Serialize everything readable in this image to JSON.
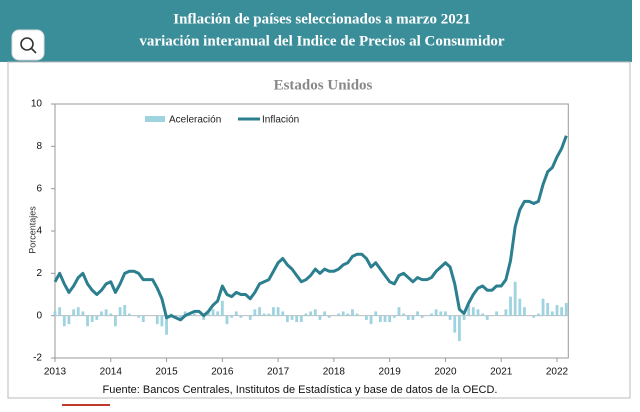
{
  "header": {
    "title_line1": "Inflación de países seleccionados a marzo 2021",
    "title_line2": "variación interanual del Indice de Precios al Consumidor"
  },
  "chart_data": {
    "type": "bar-line",
    "title": "Estados Unidos",
    "y_label": "Porcentajes",
    "source": "Fuente: Bancos Centrales, Institutos de Estadística y base de datos de la OECD.",
    "categories": [
      "2013",
      null,
      null,
      null,
      null,
      null,
      null,
      null,
      null,
      null,
      null,
      null,
      "2014",
      null,
      null,
      null,
      null,
      null,
      null,
      null,
      null,
      null,
      null,
      null,
      "2015",
      null,
      null,
      null,
      null,
      null,
      null,
      null,
      null,
      null,
      null,
      null,
      "2016",
      null,
      null,
      null,
      null,
      null,
      null,
      null,
      null,
      null,
      null,
      null,
      "2017",
      null,
      null,
      null,
      null,
      null,
      null,
      null,
      null,
      null,
      null,
      null,
      "2018",
      null,
      null,
      null,
      null,
      null,
      null,
      null,
      null,
      null,
      null,
      null,
      "2019",
      null,
      null,
      null,
      null,
      null,
      null,
      null,
      null,
      null,
      null,
      null,
      "2020",
      null,
      null,
      null,
      null,
      null,
      null,
      null,
      null,
      null,
      null,
      null,
      "2021",
      null,
      null,
      null,
      null,
      null,
      null,
      null,
      null,
      null,
      null,
      null,
      "2022",
      null,
      null
    ],
    "series": [
      {
        "name": "Aceleración",
        "kind": "bar",
        "color": "#9fd3e0",
        "values": [
          0.2,
          0.4,
          -0.5,
          -0.4,
          0.3,
          0.4,
          0.2,
          -0.5,
          -0.3,
          -0.2,
          0.2,
          0.3,
          0.1,
          -0.5,
          0.4,
          0.5,
          0.1,
          0.0,
          -0.1,
          -0.3,
          0.0,
          0.0,
          -0.4,
          -0.5,
          -0.9,
          0.1,
          -0.1,
          -0.1,
          0.2,
          0.1,
          0.1,
          0.0,
          -0.2,
          0.2,
          0.3,
          0.2,
          0.7,
          -0.4,
          -0.1,
          0.2,
          -0.1,
          0.0,
          -0.2,
          0.3,
          0.4,
          0.1,
          0.1,
          0.4,
          0.4,
          0.2,
          -0.3,
          -0.2,
          -0.3,
          -0.3,
          0.1,
          0.2,
          0.3,
          -0.2,
          0.2,
          -0.1,
          0.0,
          0.1,
          0.2,
          0.1,
          0.3,
          0.1,
          0.0,
          -0.2,
          -0.4,
          0.2,
          -0.3,
          -0.3,
          -0.3,
          -0.1,
          0.4,
          0.1,
          -0.2,
          -0.2,
          0.2,
          -0.1,
          0.0,
          0.1,
          0.3,
          0.2,
          0.2,
          -0.2,
          -0.8,
          -1.2,
          -0.2,
          0.5,
          0.4,
          0.3,
          0.1,
          -0.2,
          0.0,
          0.2,
          0.0,
          0.3,
          0.9,
          1.6,
          0.8,
          0.4,
          0.0,
          -0.1,
          0.1,
          0.8,
          0.6,
          0.2,
          0.5,
          0.4,
          0.6
        ]
      },
      {
        "name": "Inflación",
        "kind": "line",
        "color": "#2b7f8e",
        "values": [
          1.6,
          2.0,
          1.5,
          1.1,
          1.4,
          1.8,
          2.0,
          1.5,
          1.2,
          1.0,
          1.2,
          1.5,
          1.6,
          1.1,
          1.5,
          2.0,
          2.1,
          2.1,
          2.0,
          1.7,
          1.7,
          1.7,
          1.3,
          0.8,
          -0.1,
          0.0,
          -0.1,
          -0.2,
          0.0,
          0.1,
          0.2,
          0.2,
          0.0,
          0.2,
          0.5,
          0.7,
          1.4,
          1.0,
          0.9,
          1.1,
          1.0,
          1.0,
          0.8,
          1.1,
          1.5,
          1.6,
          1.7,
          2.1,
          2.5,
          2.7,
          2.4,
          2.2,
          1.9,
          1.6,
          1.7,
          1.9,
          2.2,
          2.0,
          2.2,
          2.1,
          2.1,
          2.2,
          2.4,
          2.5,
          2.8,
          2.9,
          2.9,
          2.7,
          2.3,
          2.5,
          2.2,
          1.9,
          1.6,
          1.5,
          1.9,
          2.0,
          1.8,
          1.6,
          1.8,
          1.7,
          1.7,
          1.8,
          2.1,
          2.3,
          2.5,
          2.3,
          1.5,
          0.3,
          0.1,
          0.6,
          1.0,
          1.3,
          1.4,
          1.2,
          1.2,
          1.4,
          1.4,
          1.7,
          2.6,
          4.2,
          5.0,
          5.4,
          5.4,
          5.3,
          5.4,
          6.2,
          6.8,
          7.0,
          7.5,
          7.9,
          8.5
        ]
      }
    ],
    "ylim": [
      -2,
      10
    ],
    "yticks": [
      -2,
      0,
      2,
      4,
      6,
      8,
      10
    ]
  }
}
